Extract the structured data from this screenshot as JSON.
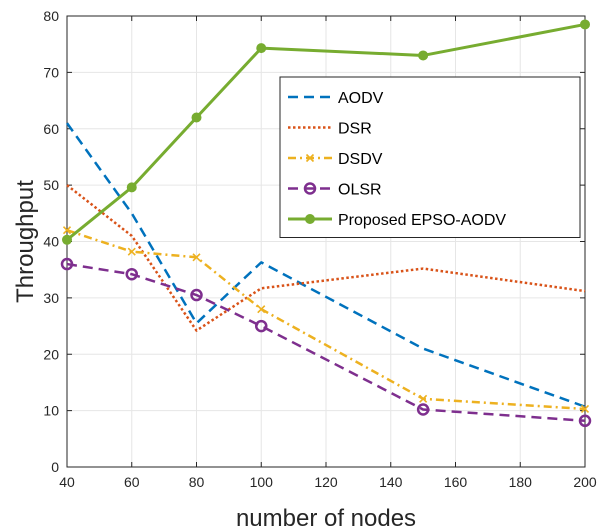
{
  "chart_data": {
    "type": "line",
    "title": "",
    "xlabel": "number of nodes",
    "ylabel": "Throughput",
    "x": [
      40,
      60,
      80,
      100,
      150,
      200
    ],
    "xlim": [
      40,
      200
    ],
    "ylim": [
      0,
      80
    ],
    "xticks": [
      "40",
      "60",
      "80",
      "100",
      "120",
      "140",
      "160",
      "180",
      "200"
    ],
    "yticks": [
      "0",
      "10",
      "20",
      "30",
      "40",
      "50",
      "60",
      "70",
      "80"
    ],
    "grid": true,
    "legend_position": "upper-right",
    "series": [
      {
        "name": "AODV",
        "values": [
          61,
          45,
          25.5,
          36.3,
          21,
          10.7
        ],
        "color": "#0072BD",
        "style": "dashed",
        "marker": "none"
      },
      {
        "name": "DSR",
        "values": [
          50,
          41,
          24.2,
          31.7,
          35.2,
          31.2
        ],
        "color": "#D95319",
        "style": "dotted",
        "marker": "none"
      },
      {
        "name": "DSDV",
        "values": [
          42,
          38.2,
          37.2,
          28,
          12.1,
          10.3
        ],
        "color": "#EDB120",
        "style": "dashdot",
        "marker": "x"
      },
      {
        "name": "OLSR",
        "values": [
          36,
          34.2,
          30.5,
          25,
          10.2,
          8.2
        ],
        "color": "#7E2F8E",
        "style": "dashed",
        "marker": "circle"
      },
      {
        "name": "Proposed EPSO-AODV",
        "values": [
          40.3,
          49.6,
          62,
          74.3,
          73,
          78.5
        ],
        "color": "#77AC30",
        "style": "solid",
        "marker": "dot"
      }
    ]
  }
}
